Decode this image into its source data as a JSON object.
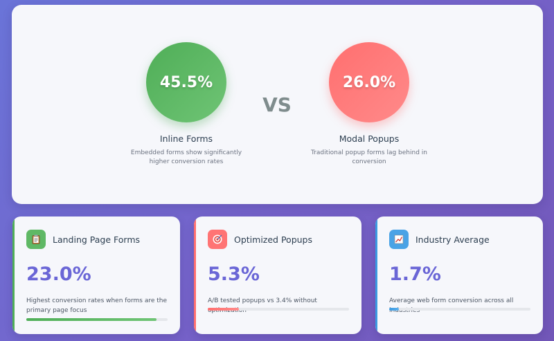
{
  "comparison": {
    "left": {
      "percent": "45.5%",
      "title": "Inline Forms",
      "description": "Embedded forms show significantly higher conversion rates",
      "color": "#4fae57"
    },
    "vs_label": "VS",
    "right": {
      "percent": "26.0%",
      "title": "Modal Popups",
      "description": "Traditional popup forms lag behind in conversion",
      "color": "#ff7070"
    }
  },
  "cards": [
    {
      "title": "Landing Page Forms",
      "icon": "clipboard-icon",
      "value": "23.0%",
      "description": "Highest conversion rates when forms are the primary page focus",
      "accent": "#4fae57",
      "progress": 0.92
    },
    {
      "title": "Optimized Popups",
      "icon": "target-icon",
      "value": "5.3%",
      "description": "A/B tested popups vs 3.4% without optimization",
      "accent": "#ff6f6f",
      "progress": 0.22
    },
    {
      "title": "Industry Average",
      "icon": "chart-icon",
      "value": "1.7%",
      "description": "Average web form conversion across all industries",
      "accent": "#3b9ae1",
      "progress": 0.07
    }
  ]
}
